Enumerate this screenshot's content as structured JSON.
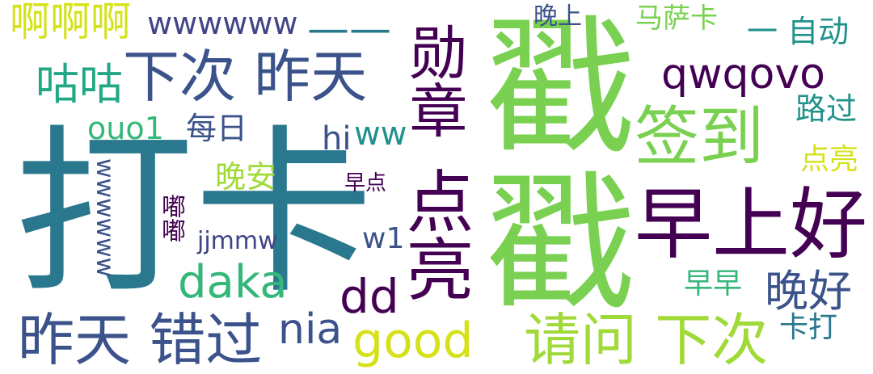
{
  "words": {
    "daka_big": "打卡",
    "chuo": "戳",
    "zaoshanghao": "早上好",
    "qiandao": "签到",
    "xiaci_zuotian": "下次 昨天",
    "zuotian_cuoguo": "昨天 错过",
    "qingwen_xiaci": "请问 下次",
    "dianliang_v": "点亮",
    "xunzhang": "勋章",
    "aaa": "啊啊啊",
    "wwwwww": "wwwwww",
    "dash": "——",
    "qwqovo": "qwqovo",
    "guguo": "咕咕",
    "daka_latin": "daka",
    "dd": "dd",
    "good": "good",
    "nia": "nia",
    "wanhao": "晚好",
    "ouo1": "ouo1",
    "meiri": "每日",
    "hi": "hi",
    "ww": "ww",
    "wanan": "晚安",
    "zaodian": "早点",
    "jjmmw": "jjmmw",
    "w1": "w1",
    "wwwwww_v": "wwwwww",
    "dudu": "嘟嘟",
    "wanshang": "晚上",
    "masaka": "马萨卡",
    "zidong": "一 自动",
    "luguo": "路过",
    "dianliang_small": "点亮",
    "zaozao": "早早",
    "kada": "卡打"
  },
  "colors": {
    "lime": "#7ad151",
    "teal_dark": "#2a788e",
    "purple_dark": "#440154",
    "indigo": "#3b528b",
    "indigo_light": "#414487",
    "yellow": "#d5e21a",
    "green_teal": "#22a884",
    "mint": "#35b779",
    "yellow_green": "#a0da39",
    "teal": "#21918c"
  }
}
